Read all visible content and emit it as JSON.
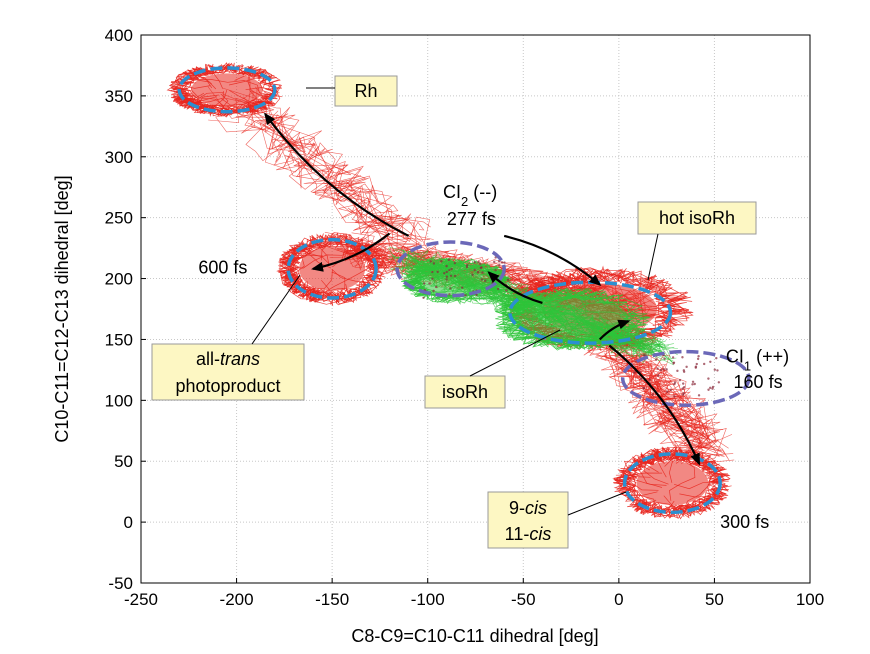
{
  "chart_data": {
    "type": "scatter",
    "title": "",
    "xlabel": "C8-C9=C10-C11 dihedral [deg]",
    "ylabel": "C10-C11=C12-C13 dihedral [deg]",
    "xlim": [
      -250,
      100
    ],
    "ylim": [
      -50,
      400
    ],
    "xticks": [
      "-250",
      "-200",
      "-150",
      "-100",
      "-50",
      "0",
      "50",
      "100"
    ],
    "yticks": [
      "-50",
      "0",
      "50",
      "100",
      "150",
      "200",
      "250",
      "300",
      "350",
      "400"
    ],
    "grid": true,
    "series": [
      {
        "description_color": "#e8261e",
        "regions": [
          {
            "cx": -205,
            "cy": 355,
            "rx": 25,
            "ry": 18
          },
          {
            "cx": -150,
            "cy": 208,
            "rx": 23,
            "ry": 24
          },
          {
            "cx": -10,
            "cy": 175,
            "rx": 40,
            "ry": 28
          },
          {
            "cx": 28,
            "cy": 32,
            "rx": 25,
            "ry": 24
          }
        ]
      },
      {
        "description_color": "#2ec43a",
        "regions": [
          {
            "cx": -85,
            "cy": 198,
            "rx": 28,
            "ry": 18
          },
          {
            "cx": -25,
            "cy": 167,
            "rx": 40,
            "ry": 25
          }
        ]
      }
    ],
    "cyan_ellipses": [
      {
        "cx": -205,
        "cy": 355,
        "rx": 25,
        "ry": 18
      },
      {
        "cx": -150,
        "cy": 208,
        "rx": 23,
        "ry": 24
      },
      {
        "cx": 28,
        "cy": 32,
        "rx": 25,
        "ry": 24
      },
      {
        "cx": -15,
        "cy": 172,
        "rx": 42,
        "ry": 25
      }
    ],
    "purple_ellipses": [
      {
        "cx": -88,
        "cy": 208,
        "rx": 28,
        "ry": 22
      },
      {
        "cx": 35,
        "cy": 118,
        "rx": 33,
        "ry": 22
      }
    ],
    "arrows": [
      {
        "from": [
          -110,
          235
        ],
        "to": [
          -185,
          335
        ]
      },
      {
        "from": [
          -120,
          237
        ],
        "to": [
          -160,
          208
        ]
      },
      {
        "from": [
          -60,
          235
        ],
        "to": [
          -10,
          195
        ]
      },
      {
        "from": [
          -40,
          180
        ],
        "to": [
          -68,
          205
        ]
      },
      {
        "from": [
          -10,
          150
        ],
        "to": [
          5,
          165
        ]
      },
      {
        "from": [
          -5,
          145
        ],
        "to": [
          42,
          48
        ]
      }
    ],
    "annotations": [
      {
        "id": "rh",
        "text": "Rh",
        "boxed": true,
        "x": -182,
        "y": 362
      },
      {
        "id": "hot-isorh",
        "text": "hot isoRh",
        "boxed": true,
        "x": 10,
        "y": 250
      },
      {
        "id": "ci2-label",
        "text": "CI",
        "sub": "2",
        "suffix": " (--)",
        "x": -92,
        "y": 266
      },
      {
        "id": "ci2-time",
        "text": "277 fs",
        "x": -90,
        "y": 244
      },
      {
        "id": "t600",
        "text": "600 fs",
        "x": -220,
        "y": 204
      },
      {
        "id": "all-trans",
        "line1": "all-",
        "line1_italic": "trans",
        "line2": "photoproduct",
        "boxed": true,
        "x": -248,
        "y": 145
      },
      {
        "id": "isorh",
        "text": "isoRh",
        "boxed": true,
        "x": -100,
        "y": 113
      },
      {
        "id": "ci1-label",
        "text": "CI",
        "sub": "1",
        "suffix": " (++)",
        "x": 56,
        "y": 131
      },
      {
        "id": "ci1-time",
        "text": "160 fs",
        "x": 60,
        "y": 110
      },
      {
        "id": "cis",
        "line1_prefix": "9-",
        "line1_italic": "cis",
        "line2_prefix": "11-",
        "line2_italic": "cis",
        "boxed": true,
        "x": -68,
        "y": 18
      },
      {
        "id": "t300",
        "text": "300 fs",
        "x": 53,
        "y": -5
      }
    ]
  }
}
